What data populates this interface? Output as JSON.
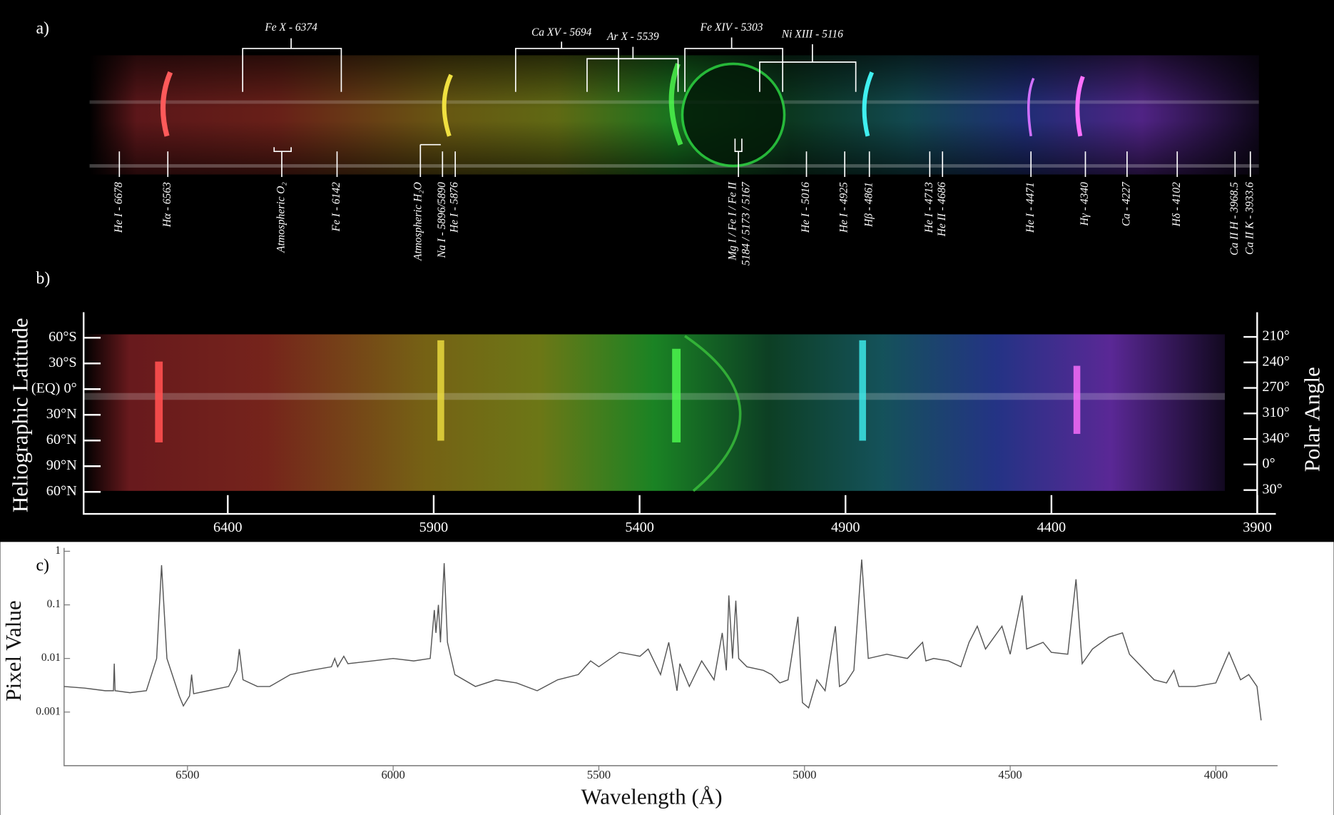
{
  "chart_data": [
    {
      "type": "image",
      "label": "a)",
      "line_labels": [
        "He I - 6678",
        "Hα - 6563",
        "Atmospheric O₂",
        "Fe I - 6142",
        "Atmospheric H₂O",
        "Na I - 5896/5890",
        "He I - 5876",
        "Mg I / Fe I / Fe II",
        "5184 / 5173 / 5167",
        "He I - 5016",
        "He I - 4925",
        "Hβ - 4861",
        "He I - 4713",
        "He II - 4686",
        "He I - 4471",
        "Hγ - 4340",
        "Ca - 4227",
        "Hδ - 4102",
        "Ca II H - 3968.5",
        "Ca II K - 3933.6"
      ],
      "coronal_labels": [
        "Fe X - 6374",
        "Ca XV - 5694",
        "Ar X - 5539",
        "Fe XIV - 5303",
        "Ni XIII - 5116"
      ]
    },
    {
      "type": "image",
      "label": "b)",
      "xlim": [
        6750,
        3855
      ],
      "xticks": [
        6400,
        5900,
        5400,
        4900,
        4400,
        3900
      ],
      "y_label": "Heliographic Latitude",
      "y_categories": [
        "60°S",
        "30°S",
        "(EQ) 0°",
        "30°N",
        "60°N",
        "90°N",
        "60°N"
      ],
      "y2_label": "Polar Angle",
      "y2_categories": [
        "210°",
        "240°",
        "270°",
        "310°",
        "340°",
        "0°",
        "30°"
      ]
    },
    {
      "type": "line",
      "label": "c)",
      "xlabel": "Wavelength (Å)",
      "ylabel": "Pixel Value",
      "log_y": true,
      "color": "#555555",
      "xlim": [
        6800,
        3850
      ],
      "ylim": [
        0.0001,
        1
      ],
      "xticks": [
        6500,
        6000,
        5500,
        5000,
        4500,
        4000
      ],
      "yticks": [
        0.001,
        0.01,
        0.1,
        1
      ],
      "x": [
        6800,
        6750,
        6700,
        6680,
        6678,
        6676,
        6640,
        6600,
        6575,
        6563,
        6550,
        6520,
        6510,
        6495,
        6490,
        6485,
        6450,
        6400,
        6380,
        6374,
        6365,
        6330,
        6300,
        6250,
        6200,
        6150,
        6142,
        6135,
        6120,
        6110,
        6050,
        6000,
        5950,
        5910,
        5900,
        5896,
        5890,
        5885,
        5876,
        5868,
        5850,
        5800,
        5750,
        5700,
        5650,
        5600,
        5550,
        5520,
        5500,
        5450,
        5400,
        5380,
        5350,
        5330,
        5310,
        5303,
        5280,
        5250,
        5220,
        5200,
        5190,
        5184,
        5175,
        5167,
        5160,
        5140,
        5100,
        5080,
        5060,
        5040,
        5016,
        5005,
        4990,
        4970,
        4950,
        4925,
        4915,
        4900,
        4880,
        4861,
        4845,
        4800,
        4750,
        4713,
        4705,
        4686,
        4650,
        4620,
        4600,
        4580,
        4560,
        4520,
        4500,
        4471,
        4460,
        4420,
        4400,
        4360,
        4340,
        4325,
        4300,
        4260,
        4227,
        4210,
        4150,
        4120,
        4102,
        4090,
        4050,
        4000,
        3968,
        3940,
        3920,
        3900,
        3890
      ],
      "values": [
        0.003,
        0.0028,
        0.0025,
        0.0025,
        0.008,
        0.0025,
        0.0023,
        0.0025,
        0.01,
        0.55,
        0.01,
        0.002,
        0.0013,
        0.002,
        0.005,
        0.0022,
        0.0025,
        0.003,
        0.006,
        0.015,
        0.004,
        0.003,
        0.003,
        0.005,
        0.006,
        0.007,
        0.01,
        0.007,
        0.011,
        0.008,
        0.009,
        0.01,
        0.009,
        0.01,
        0.08,
        0.03,
        0.1,
        0.02,
        0.6,
        0.02,
        0.005,
        0.003,
        0.004,
        0.0035,
        0.0025,
        0.004,
        0.005,
        0.009,
        0.007,
        0.013,
        0.011,
        0.015,
        0.005,
        0.02,
        0.0025,
        0.008,
        0.003,
        0.009,
        0.004,
        0.03,
        0.006,
        0.15,
        0.01,
        0.12,
        0.01,
        0.007,
        0.006,
        0.005,
        0.0035,
        0.004,
        0.06,
        0.0015,
        0.0012,
        0.004,
        0.0025,
        0.04,
        0.003,
        0.0035,
        0.006,
        0.7,
        0.01,
        0.012,
        0.01,
        0.02,
        0.009,
        0.01,
        0.009,
        0.007,
        0.02,
        0.04,
        0.015,
        0.04,
        0.012,
        0.15,
        0.015,
        0.02,
        0.013,
        0.012,
        0.3,
        0.008,
        0.015,
        0.025,
        0.03,
        0.012,
        0.004,
        0.0035,
        0.006,
        0.003,
        0.003,
        0.0035,
        0.013,
        0.004,
        0.005,
        0.003,
        0.0007
      ]
    }
  ]
}
